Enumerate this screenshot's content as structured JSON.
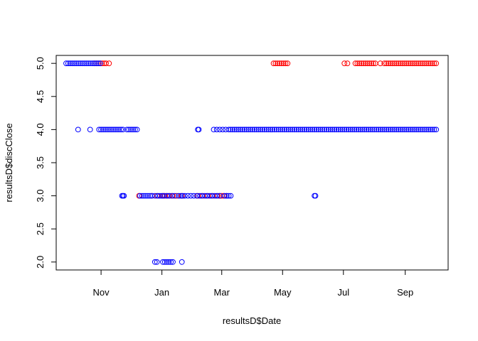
{
  "chart_data": {
    "type": "scatter",
    "xlabel": "resultsD$Date",
    "ylabel": "resultsD$discClose",
    "ylim": [
      2.0,
      5.0
    ],
    "xlim": [
      "2015-09-17",
      "2016-10-14"
    ],
    "x_ticks": [
      {
        "date": "2015-11-01",
        "label": "Nov"
      },
      {
        "date": "2016-01-01",
        "label": "Jan"
      },
      {
        "date": "2016-03-01",
        "label": "Mar"
      },
      {
        "date": "2016-05-01",
        "label": "May"
      },
      {
        "date": "2016-07-01",
        "label": "Jul"
      },
      {
        "date": "2016-09-01",
        "label": "Sep"
      }
    ],
    "y_ticks": [
      "2.0",
      "2.5",
      "3.0",
      "3.5",
      "4.0",
      "4.5",
      "5.0"
    ],
    "marker": "open-circle",
    "series": [
      {
        "color": "#ff0000",
        "points": [
          [
            "2015-10-25",
            5
          ],
          [
            "2015-10-27",
            5
          ],
          [
            "2015-10-29",
            5
          ],
          [
            "2015-10-31",
            5
          ],
          [
            "2015-11-02",
            5
          ],
          [
            "2015-11-04",
            5
          ],
          [
            "2015-11-06",
            5
          ],
          [
            "2015-11-09",
            5
          ],
          [
            "2015-12-09",
            3
          ],
          [
            "2015-12-22",
            3
          ],
          [
            "2015-12-27",
            3
          ],
          [
            "2016-01-02",
            3
          ],
          [
            "2016-01-04",
            3
          ],
          [
            "2016-01-06",
            3
          ],
          [
            "2016-01-09",
            3
          ],
          [
            "2016-01-12",
            3
          ],
          [
            "2016-01-16",
            3
          ],
          [
            "2016-01-21",
            3
          ],
          [
            "2016-02-06",
            3
          ],
          [
            "2016-02-11",
            3
          ],
          [
            "2016-02-16",
            3
          ],
          [
            "2016-02-21",
            3
          ],
          [
            "2016-02-26",
            3
          ],
          [
            "2016-02-28",
            3
          ],
          [
            "2016-03-01",
            3
          ],
          [
            "2016-03-03",
            3
          ],
          [
            "2016-03-06",
            3
          ],
          [
            "2016-04-22",
            5
          ],
          [
            "2016-04-24",
            5
          ],
          [
            "2016-04-26",
            5
          ],
          [
            "2016-04-28",
            5
          ],
          [
            "2016-04-30",
            5
          ],
          [
            "2016-05-02",
            5
          ],
          [
            "2016-05-04",
            5
          ],
          [
            "2016-05-06",
            5
          ],
          [
            "2016-07-02",
            5
          ],
          [
            "2016-07-05",
            5
          ],
          [
            "2016-07-13",
            5
          ],
          [
            "2016-07-15",
            5
          ],
          [
            "2016-07-17",
            5
          ],
          [
            "2016-07-19",
            5
          ],
          [
            "2016-07-21",
            5
          ],
          [
            "2016-07-23",
            5
          ],
          [
            "2016-07-25",
            5
          ],
          [
            "2016-07-27",
            5
          ],
          [
            "2016-07-29",
            5
          ],
          [
            "2016-07-31",
            5
          ],
          [
            "2016-08-02",
            5
          ],
          [
            "2016-08-07",
            5
          ],
          [
            "2016-08-11",
            5
          ],
          [
            "2016-08-13",
            5
          ],
          [
            "2016-08-15",
            5
          ],
          [
            "2016-08-17",
            5
          ],
          [
            "2016-08-19",
            5
          ],
          [
            "2016-08-21",
            5
          ],
          [
            "2016-08-23",
            5
          ],
          [
            "2016-08-25",
            5
          ],
          [
            "2016-08-27",
            5
          ],
          [
            "2016-08-29",
            5
          ],
          [
            "2016-08-31",
            5
          ],
          [
            "2016-09-02",
            5
          ],
          [
            "2016-09-04",
            5
          ],
          [
            "2016-09-06",
            5
          ],
          [
            "2016-09-08",
            5
          ],
          [
            "2016-09-10",
            5
          ],
          [
            "2016-09-12",
            5
          ],
          [
            "2016-09-14",
            5
          ],
          [
            "2016-09-16",
            5
          ],
          [
            "2016-09-18",
            5
          ],
          [
            "2016-09-20",
            5
          ],
          [
            "2016-09-22",
            5
          ],
          [
            "2016-09-24",
            5
          ],
          [
            "2016-09-26",
            5
          ],
          [
            "2016-09-28",
            5
          ],
          [
            "2016-09-30",
            5
          ],
          [
            "2016-10-02",
            5
          ]
        ]
      },
      {
        "color": "#0000ff",
        "points": [
          [
            "2015-09-27",
            5
          ],
          [
            "2015-09-29",
            5
          ],
          [
            "2015-10-01",
            5
          ],
          [
            "2015-10-03",
            5
          ],
          [
            "2015-10-05",
            5
          ],
          [
            "2015-10-07",
            5
          ],
          [
            "2015-10-09",
            5
          ],
          [
            "2015-10-11",
            5
          ],
          [
            "2015-10-13",
            5
          ],
          [
            "2015-10-15",
            5
          ],
          [
            "2015-10-17",
            5
          ],
          [
            "2015-10-19",
            5
          ],
          [
            "2015-10-21",
            5
          ],
          [
            "2015-10-23",
            5
          ],
          [
            "2015-10-25",
            5
          ],
          [
            "2015-10-27",
            5
          ],
          [
            "2015-10-29",
            5
          ],
          [
            "2015-10-31",
            5
          ],
          [
            "2015-10-09",
            4
          ],
          [
            "2015-10-21",
            4
          ],
          [
            "2015-10-30",
            4
          ],
          [
            "2015-11-01",
            4
          ],
          [
            "2015-11-03",
            4
          ],
          [
            "2015-11-05",
            4
          ],
          [
            "2015-11-07",
            4
          ],
          [
            "2015-11-09",
            4
          ],
          [
            "2015-11-11",
            4
          ],
          [
            "2015-11-13",
            4
          ],
          [
            "2015-11-15",
            4
          ],
          [
            "2015-11-17",
            4
          ],
          [
            "2015-11-19",
            4
          ],
          [
            "2015-11-21",
            4
          ],
          [
            "2015-11-23",
            4
          ],
          [
            "2015-11-27",
            4
          ],
          [
            "2015-11-29",
            4
          ],
          [
            "2015-12-01",
            4
          ],
          [
            "2015-12-03",
            4
          ],
          [
            "2015-12-05",
            4
          ],
          [
            "2015-12-07",
            4
          ],
          [
            "2015-11-22",
            3
          ],
          [
            "2015-11-23",
            3
          ],
          [
            "2015-11-24",
            3
          ],
          [
            "2015-12-10",
            3
          ],
          [
            "2015-12-12",
            3
          ],
          [
            "2015-12-14",
            3
          ],
          [
            "2015-12-16",
            3
          ],
          [
            "2015-12-18",
            3
          ],
          [
            "2015-12-20",
            3
          ],
          [
            "2015-12-22",
            3
          ],
          [
            "2015-12-25",
            3
          ],
          [
            "2015-12-28",
            3
          ],
          [
            "2015-12-30",
            3
          ],
          [
            "2016-01-01",
            3
          ],
          [
            "2016-01-03",
            3
          ],
          [
            "2016-01-06",
            3
          ],
          [
            "2016-01-08",
            3
          ],
          [
            "2016-01-11",
            3
          ],
          [
            "2016-01-14",
            3
          ],
          [
            "2016-01-18",
            3
          ],
          [
            "2016-01-20",
            3
          ],
          [
            "2016-01-22",
            3
          ],
          [
            "2016-01-24",
            3
          ],
          [
            "2016-01-27",
            3
          ],
          [
            "2016-01-30",
            3
          ],
          [
            "2016-02-02",
            3
          ],
          [
            "2016-02-05",
            3
          ],
          [
            "2016-02-08",
            3
          ],
          [
            "2016-02-10",
            3
          ],
          [
            "2016-02-13",
            3
          ],
          [
            "2016-02-15",
            3
          ],
          [
            "2016-02-18",
            3
          ],
          [
            "2016-02-20",
            3
          ],
          [
            "2016-02-23",
            3
          ],
          [
            "2016-02-25",
            3
          ],
          [
            "2016-02-28",
            3
          ],
          [
            "2016-03-04",
            3
          ],
          [
            "2016-03-06",
            3
          ],
          [
            "2016-03-08",
            3
          ],
          [
            "2016-03-10",
            3
          ],
          [
            "2015-12-25",
            2
          ],
          [
            "2015-12-27",
            2
          ],
          [
            "2016-01-02",
            2
          ],
          [
            "2016-01-04",
            2
          ],
          [
            "2016-01-06",
            2
          ],
          [
            "2016-01-08",
            2
          ],
          [
            "2016-01-10",
            2
          ],
          [
            "2016-01-12",
            2
          ],
          [
            "2016-01-21",
            2
          ],
          [
            "2016-02-06",
            4
          ],
          [
            "2016-02-07",
            4
          ],
          [
            "2016-02-22",
            4
          ],
          [
            "2016-02-25",
            4
          ],
          [
            "2016-02-28",
            4
          ],
          [
            "2016-03-02",
            4
          ],
          [
            "2016-03-05",
            4
          ],
          [
            "2016-03-08",
            4
          ],
          [
            "2016-03-10",
            4
          ],
          [
            "2016-03-12",
            4
          ],
          [
            "2016-03-14",
            4
          ],
          [
            "2016-03-16",
            4
          ],
          [
            "2016-03-18",
            4
          ],
          [
            "2016-03-20",
            4
          ],
          [
            "2016-03-22",
            4
          ],
          [
            "2016-03-24",
            4
          ],
          [
            "2016-03-26",
            4
          ],
          [
            "2016-03-28",
            4
          ],
          [
            "2016-03-30",
            4
          ],
          [
            "2016-04-01",
            4
          ],
          [
            "2016-04-03",
            4
          ],
          [
            "2016-04-05",
            4
          ],
          [
            "2016-04-07",
            4
          ],
          [
            "2016-04-09",
            4
          ],
          [
            "2016-04-11",
            4
          ],
          [
            "2016-04-13",
            4
          ],
          [
            "2016-04-15",
            4
          ],
          [
            "2016-04-17",
            4
          ],
          [
            "2016-04-19",
            4
          ],
          [
            "2016-04-21",
            4
          ],
          [
            "2016-04-23",
            4
          ],
          [
            "2016-04-25",
            4
          ],
          [
            "2016-04-27",
            4
          ],
          [
            "2016-04-29",
            4
          ],
          [
            "2016-05-01",
            4
          ],
          [
            "2016-05-03",
            4
          ],
          [
            "2016-05-05",
            4
          ],
          [
            "2016-05-07",
            4
          ],
          [
            "2016-05-09",
            4
          ],
          [
            "2016-05-11",
            4
          ],
          [
            "2016-05-13",
            4
          ],
          [
            "2016-05-15",
            4
          ],
          [
            "2016-05-17",
            4
          ],
          [
            "2016-05-19",
            4
          ],
          [
            "2016-05-21",
            4
          ],
          [
            "2016-05-23",
            4
          ],
          [
            "2016-05-25",
            4
          ],
          [
            "2016-05-27",
            4
          ],
          [
            "2016-05-29",
            4
          ],
          [
            "2016-05-31",
            4
          ],
          [
            "2016-06-02",
            4
          ],
          [
            "2016-06-04",
            4
          ],
          [
            "2016-06-06",
            4
          ],
          [
            "2016-06-08",
            4
          ],
          [
            "2016-06-10",
            4
          ],
          [
            "2016-06-12",
            4
          ],
          [
            "2016-06-14",
            4
          ],
          [
            "2016-06-16",
            4
          ],
          [
            "2016-06-18",
            4
          ],
          [
            "2016-06-20",
            4
          ],
          [
            "2016-06-22",
            4
          ],
          [
            "2016-06-24",
            4
          ],
          [
            "2016-06-26",
            4
          ],
          [
            "2016-06-28",
            4
          ],
          [
            "2016-06-30",
            4
          ],
          [
            "2016-07-02",
            4
          ],
          [
            "2016-07-04",
            4
          ],
          [
            "2016-07-06",
            4
          ],
          [
            "2016-07-08",
            4
          ],
          [
            "2016-07-10",
            4
          ],
          [
            "2016-07-12",
            4
          ],
          [
            "2016-07-14",
            4
          ],
          [
            "2016-07-16",
            4
          ],
          [
            "2016-07-18",
            4
          ],
          [
            "2016-07-20",
            4
          ],
          [
            "2016-07-22",
            4
          ],
          [
            "2016-07-24",
            4
          ],
          [
            "2016-07-26",
            4
          ],
          [
            "2016-07-28",
            4
          ],
          [
            "2016-07-30",
            4
          ],
          [
            "2016-08-01",
            4
          ],
          [
            "2016-08-03",
            4
          ],
          [
            "2016-08-05",
            4
          ],
          [
            "2016-08-07",
            4
          ],
          [
            "2016-08-09",
            4
          ],
          [
            "2016-08-11",
            4
          ],
          [
            "2016-08-13",
            4
          ],
          [
            "2016-08-15",
            4
          ],
          [
            "2016-08-17",
            4
          ],
          [
            "2016-08-19",
            4
          ],
          [
            "2016-08-21",
            4
          ],
          [
            "2016-08-23",
            4
          ],
          [
            "2016-08-25",
            4
          ],
          [
            "2016-08-27",
            4
          ],
          [
            "2016-08-29",
            4
          ],
          [
            "2016-08-31",
            4
          ],
          [
            "2016-09-02",
            4
          ],
          [
            "2016-09-04",
            4
          ],
          [
            "2016-09-06",
            4
          ],
          [
            "2016-09-08",
            4
          ],
          [
            "2016-09-10",
            4
          ],
          [
            "2016-09-12",
            4
          ],
          [
            "2016-09-14",
            4
          ],
          [
            "2016-09-16",
            4
          ],
          [
            "2016-09-18",
            4
          ],
          [
            "2016-09-20",
            4
          ],
          [
            "2016-09-22",
            4
          ],
          [
            "2016-09-24",
            4
          ],
          [
            "2016-09-26",
            4
          ],
          [
            "2016-09-28",
            4
          ],
          [
            "2016-09-30",
            4
          ],
          [
            "2016-10-02",
            4
          ],
          [
            "2016-06-02",
            3
          ],
          [
            "2016-06-03",
            3
          ]
        ]
      }
    ],
    "grid": false,
    "legend": "none"
  }
}
